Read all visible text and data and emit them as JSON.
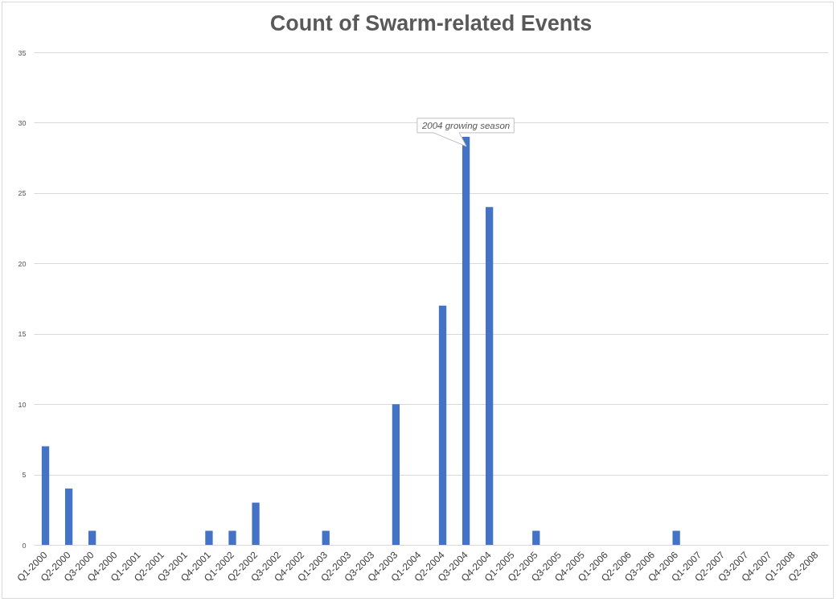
{
  "chart_data": {
    "type": "bar",
    "title": "Count of Swarm-related Events",
    "categories": [
      "Q1-2000",
      "Q2-2000",
      "Q3-2000",
      "Q4-2000",
      "Q1-2001",
      "Q2-2001",
      "Q3-2001",
      "Q4-2001",
      "Q1-2002",
      "Q2-2002",
      "Q3-2002",
      "Q4-2002",
      "Q1-2003",
      "Q2-2003",
      "Q3-2003",
      "Q4-2003",
      "Q1-2004",
      "Q2-2004",
      "Q3-2004",
      "Q4-2004",
      "Q1-2005",
      "Q2-2005",
      "Q3-2005",
      "Q4-2005",
      "Q1-2006",
      "Q2-2006",
      "Q3-2006",
      "Q4-2006",
      "Q1-2007",
      "Q2-2007",
      "Q3-2007",
      "Q4-2007",
      "Q1-2008",
      "Q2-2008"
    ],
    "values": [
      7,
      4,
      1,
      0,
      0,
      0,
      0,
      1,
      1,
      3,
      0,
      0,
      1,
      0,
      0,
      10,
      0,
      17,
      29,
      24,
      0,
      1,
      0,
      0,
      0,
      0,
      0,
      1,
      0,
      0,
      0,
      0,
      0,
      0
    ],
    "color": "#4472c4",
    "ylim": [
      0,
      35
    ],
    "yticks": [
      0,
      5,
      10,
      15,
      20,
      25,
      30,
      35
    ],
    "grid": "y",
    "annotations": [
      {
        "text": "2004 growing season",
        "x": "Q3-2004",
        "y": 29
      }
    ]
  }
}
